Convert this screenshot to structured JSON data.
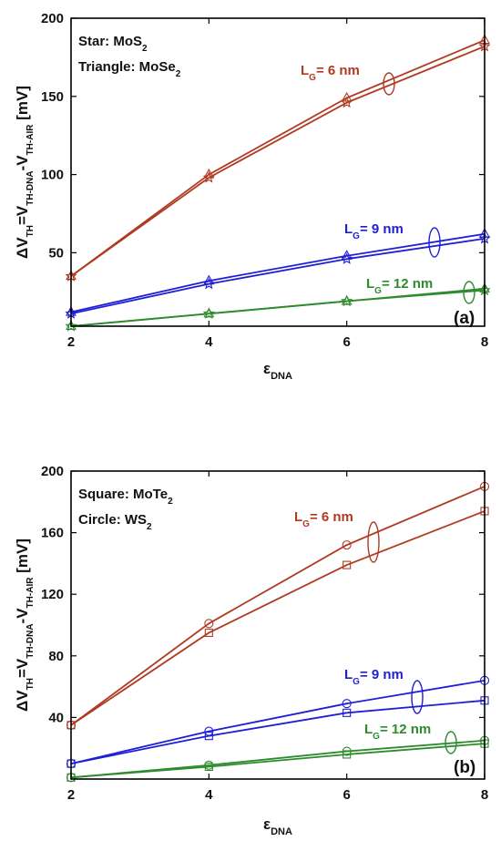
{
  "chart_data": [
    {
      "type": "line",
      "x": [
        2,
        4,
        6,
        8
      ],
      "xlim": [
        2,
        8
      ],
      "ylim": [
        3,
        200
      ],
      "xticks": [
        "2",
        "4",
        "6",
        "8"
      ],
      "yticks": [
        "50",
        "100",
        "150",
        "200"
      ],
      "xlabel_main": "ε",
      "xlabel_sub": "DNA",
      "ylabel_parts": [
        {
          "t": "ΔV",
          "sub": false
        },
        {
          "t": "TH",
          "sub": true
        },
        {
          "t": "=V",
          "sub": false
        },
        {
          "t": "TH-DNA",
          "sub": true
        },
        {
          "t": "-V",
          "sub": false
        },
        {
          "t": "TH-AIR",
          "sub": true
        },
        {
          "t": " [mV]",
          "sub": false
        }
      ],
      "notes": [
        [
          {
            "t": "Star: MoS",
            "sub": false
          },
          {
            "t": "2",
            "sub": true
          }
        ],
        [
          {
            "t": "Triangle: MoSe",
            "sub": false
          },
          {
            "t": "2",
            "sub": true
          }
        ]
      ],
      "panel_label": "(a)",
      "groups": [
        {
          "label_main": "L",
          "label_sub": "G",
          "label_rest": "= 6 nm",
          "color": "#b03a22"
        },
        {
          "label_main": "L",
          "label_sub": "G",
          "label_rest": "= 9 nm",
          "color": "#1f1fd6"
        },
        {
          "label_main": "L",
          "label_sub": "G",
          "label_rest": "= 12 nm",
          "color": "#2e8b2e"
        }
      ],
      "series": [
        {
          "values": [
            35,
            98,
            146,
            182
          ],
          "marker": "star",
          "group": 0
        },
        {
          "values": [
            35,
            100,
            149,
            186
          ],
          "marker": "triangle",
          "group": 0
        },
        {
          "values": [
            11,
            30,
            46,
            59
          ],
          "marker": "star",
          "group": 1
        },
        {
          "values": [
            12,
            32,
            48,
            62
          ],
          "marker": "triangle",
          "group": 1
        },
        {
          "values": [
            3,
            11,
            19,
            26
          ],
          "marker": "star",
          "group": 2
        },
        {
          "values": [
            3,
            11,
            19,
            27
          ],
          "marker": "triangle",
          "group": 2
        }
      ]
    },
    {
      "type": "line",
      "x": [
        2,
        4,
        6,
        8
      ],
      "xlim": [
        2,
        8
      ],
      "ylim": [
        0,
        200
      ],
      "xticks": [
        "2",
        "4",
        "6",
        "8"
      ],
      "yticks": [
        "40",
        "80",
        "120",
        "160",
        "200"
      ],
      "xlabel_main": "ε",
      "xlabel_sub": "DNA",
      "ylabel_parts": [
        {
          "t": "ΔV",
          "sub": false
        },
        {
          "t": "TH",
          "sub": true
        },
        {
          "t": "=V",
          "sub": false
        },
        {
          "t": "TH-DNA",
          "sub": true
        },
        {
          "t": "-V",
          "sub": false
        },
        {
          "t": "TH-AIR",
          "sub": true
        },
        {
          "t": " [mV]",
          "sub": false
        }
      ],
      "notes": [
        [
          {
            "t": "Square: MoTe",
            "sub": false
          },
          {
            "t": "2",
            "sub": true
          }
        ],
        [
          {
            "t": "Circle: WS",
            "sub": false
          },
          {
            "t": "2",
            "sub": true
          }
        ]
      ],
      "panel_label": "(b)",
      "groups": [
        {
          "label_main": "L",
          "label_sub": "G",
          "label_rest": "= 6 nm",
          "color": "#b03a22"
        },
        {
          "label_main": "L",
          "label_sub": "G",
          "label_rest": "= 9 nm",
          "color": "#1f1fd6"
        },
        {
          "label_main": "L",
          "label_sub": "G",
          "label_rest": "= 12 nm",
          "color": "#2e8b2e"
        }
      ],
      "series": [
        {
          "values": [
            35,
            95,
            139,
            174
          ],
          "marker": "square",
          "group": 0
        },
        {
          "values": [
            35,
            101,
            152,
            190
          ],
          "marker": "circle",
          "group": 0
        },
        {
          "values": [
            10,
            28,
            43,
            51
          ],
          "marker": "square",
          "group": 1
        },
        {
          "values": [
            10,
            31,
            49,
            64
          ],
          "marker": "circle",
          "group": 1
        },
        {
          "values": [
            1,
            8,
            16,
            23
          ],
          "marker": "square",
          "group": 2
        },
        {
          "values": [
            1,
            9,
            18,
            25
          ],
          "marker": "circle",
          "group": 2
        }
      ]
    }
  ]
}
